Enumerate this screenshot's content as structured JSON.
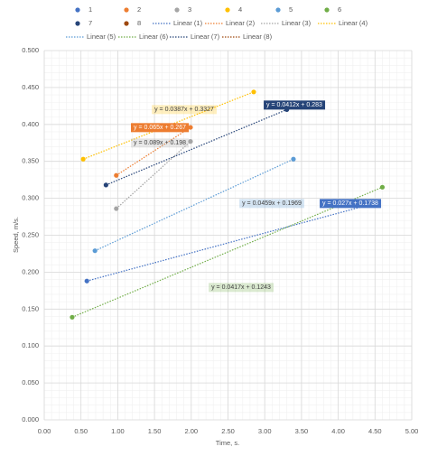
{
  "chart_data": {
    "type": "scatter",
    "x_label": "Time, s.",
    "y_label": "Speed, m/s.",
    "xlim": [
      0,
      5
    ],
    "ylim": [
      0,
      0.5
    ],
    "grid": true,
    "xticks": [
      {
        "value": 0,
        "label": "0.00"
      },
      {
        "value": 0.5,
        "label": "0.50"
      },
      {
        "value": 1,
        "label": "1.00"
      },
      {
        "value": 1.5,
        "label": "1.50"
      },
      {
        "value": 2,
        "label": "2.00"
      },
      {
        "value": 2.5,
        "label": "2.50"
      },
      {
        "value": 3,
        "label": "3.00"
      },
      {
        "value": 3.5,
        "label": "3.50"
      },
      {
        "value": 4,
        "label": "4.00"
      },
      {
        "value": 4.5,
        "label": "4.50"
      },
      {
        "value": 5,
        "label": "5.00"
      }
    ],
    "yticks": [
      {
        "value": 0,
        "label": "0.000"
      },
      {
        "value": 0.05,
        "label": "0.050"
      },
      {
        "value": 0.1,
        "label": "0.100"
      },
      {
        "value": 0.15,
        "label": "0.150"
      },
      {
        "value": 0.2,
        "label": "0.200"
      },
      {
        "value": 0.25,
        "label": "0.250"
      },
      {
        "value": 0.3,
        "label": "0.300"
      },
      {
        "value": 0.35,
        "label": "0.350"
      },
      {
        "value": 0.4,
        "label": "0.400"
      },
      {
        "value": 0.45,
        "label": "0.450"
      },
      {
        "value": 0.5,
        "label": "0.500"
      }
    ],
    "series": [
      {
        "name": "1",
        "trend_name": "Linear (1)",
        "trendline": "y = 0.027x + 0.1738",
        "color": "#4472c4",
        "x": [
          0.58,
          4.45
        ],
        "values": [
          0.188,
          0.292
        ]
      },
      {
        "name": "2",
        "trend_name": "Linear (2)",
        "trendline": "y = 0.065x + 0.267",
        "color": "#ed7d31",
        "x": [
          0.98,
          1.99
        ],
        "values": [
          0.331,
          0.396
        ]
      },
      {
        "name": "3",
        "trend_name": "Linear (3)",
        "trendline": "y = 0.089x + 0.198",
        "color": "#a5a5a5",
        "x": [
          0.98,
          1.99
        ],
        "values": [
          0.286,
          0.377
        ]
      },
      {
        "name": "4",
        "trend_name": "Linear (4)",
        "trendline": "y = 0.0387x + 0.3327",
        "color": "#ffc000",
        "x": [
          0.53,
          2.85
        ],
        "values": [
          0.353,
          0.444
        ]
      },
      {
        "name": "5",
        "trend_name": "Linear (5)",
        "trendline": "y = 0.0459x + 0.1969",
        "color": "#5b9bd5",
        "x": [
          0.69,
          3.39
        ],
        "values": [
          0.229,
          0.353
        ]
      },
      {
        "name": "6",
        "trend_name": "Linear (6)",
        "trendline": "y = 0.0417x + 0.1243",
        "color": "#70ad47",
        "x": [
          0.38,
          4.6
        ],
        "values": [
          0.139,
          0.315
        ]
      },
      {
        "name": "7",
        "trend_name": "Linear (7)",
        "trendline": "y = 0.0412x + 0.283",
        "color": "#264478",
        "x": [
          0.84,
          3.3
        ],
        "values": [
          0.318,
          0.42
        ]
      },
      {
        "name": "8",
        "trend_name": "Linear (8)",
        "color": "#9e480e",
        "x": [],
        "values": []
      }
    ]
  }
}
